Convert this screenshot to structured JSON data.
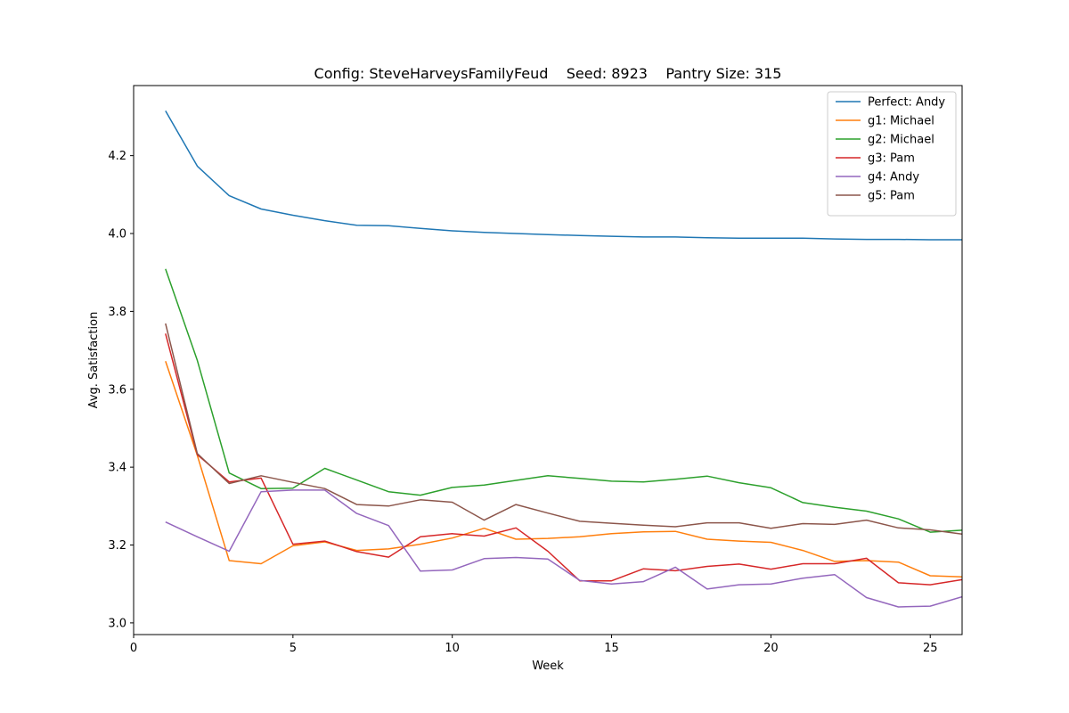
{
  "chart_data": {
    "type": "line",
    "title": "Config: SteveHarveysFamilyFeud    Seed: 8923    Pantry Size: 315",
    "xlabel": "Week",
    "ylabel": "Avg. Satisfaction",
    "xlim": [
      0,
      26
    ],
    "ylim": [
      2.97,
      4.38
    ],
    "xticks": [
      0,
      5,
      10,
      15,
      20,
      25
    ],
    "yticks": [
      3.0,
      3.2,
      3.4,
      3.6,
      3.8,
      4.0,
      4.2
    ],
    "ytick_labels": [
      "3.0",
      "3.2",
      "3.4",
      "3.6",
      "3.8",
      "4.0",
      "4.2"
    ],
    "grid": false,
    "legend_position": "top-right",
    "x": [
      1,
      2,
      3,
      4,
      5,
      6,
      7,
      8,
      9,
      10,
      11,
      12,
      13,
      14,
      15,
      16,
      17,
      18,
      19,
      20,
      21,
      22,
      23,
      24,
      25,
      26
    ],
    "series": [
      {
        "name": "Perfect: Andy",
        "color": "#1f77b4",
        "values": [
          4.315,
          4.173,
          4.097,
          4.063,
          4.047,
          4.033,
          4.021,
          4.02,
          4.013,
          4.007,
          4.003,
          4.0,
          3.997,
          3.995,
          3.993,
          3.991,
          3.991,
          3.989,
          3.988,
          3.988,
          3.988,
          3.986,
          3.985,
          3.985,
          3.984,
          3.984
        ]
      },
      {
        "name": "g1: Michael",
        "color": "#ff7f0e",
        "values": [
          3.672,
          3.43,
          3.16,
          3.152,
          3.198,
          3.208,
          3.186,
          3.19,
          3.202,
          3.218,
          3.243,
          3.215,
          3.217,
          3.221,
          3.229,
          3.234,
          3.235,
          3.215,
          3.21,
          3.207,
          3.186,
          3.158,
          3.16,
          3.156,
          3.121,
          3.118
        ]
      },
      {
        "name": "g2: Michael",
        "color": "#2ca02c",
        "values": [
          3.909,
          3.674,
          3.385,
          3.345,
          3.346,
          3.397,
          3.367,
          3.337,
          3.328,
          3.348,
          3.354,
          3.366,
          3.378,
          3.371,
          3.364,
          3.362,
          3.369,
          3.377,
          3.36,
          3.347,
          3.309,
          3.297,
          3.287,
          3.267,
          3.233,
          3.238
        ]
      },
      {
        "name": "g3: Pam",
        "color": "#d62728",
        "values": [
          3.743,
          3.432,
          3.362,
          3.372,
          3.202,
          3.21,
          3.183,
          3.169,
          3.221,
          3.229,
          3.223,
          3.244,
          3.184,
          3.108,
          3.108,
          3.139,
          3.134,
          3.145,
          3.151,
          3.138,
          3.152,
          3.152,
          3.166,
          3.103,
          3.098,
          3.111
        ]
      },
      {
        "name": "g4: Andy",
        "color": "#9467bd",
        "values": [
          3.259,
          3.221,
          3.184,
          3.337,
          3.341,
          3.341,
          3.281,
          3.25,
          3.133,
          3.136,
          3.165,
          3.168,
          3.164,
          3.109,
          3.1,
          3.106,
          3.143,
          3.087,
          3.098,
          3.1,
          3.115,
          3.124,
          3.065,
          3.041,
          3.043,
          3.067
        ]
      },
      {
        "name": "g5: Pam",
        "color": "#8c564b",
        "values": [
          3.769,
          3.435,
          3.358,
          3.378,
          3.361,
          3.345,
          3.304,
          3.3,
          3.316,
          3.31,
          3.264,
          3.304,
          3.282,
          3.261,
          3.256,
          3.251,
          3.247,
          3.257,
          3.257,
          3.243,
          3.255,
          3.253,
          3.264,
          3.244,
          3.239,
          3.228
        ]
      }
    ]
  }
}
